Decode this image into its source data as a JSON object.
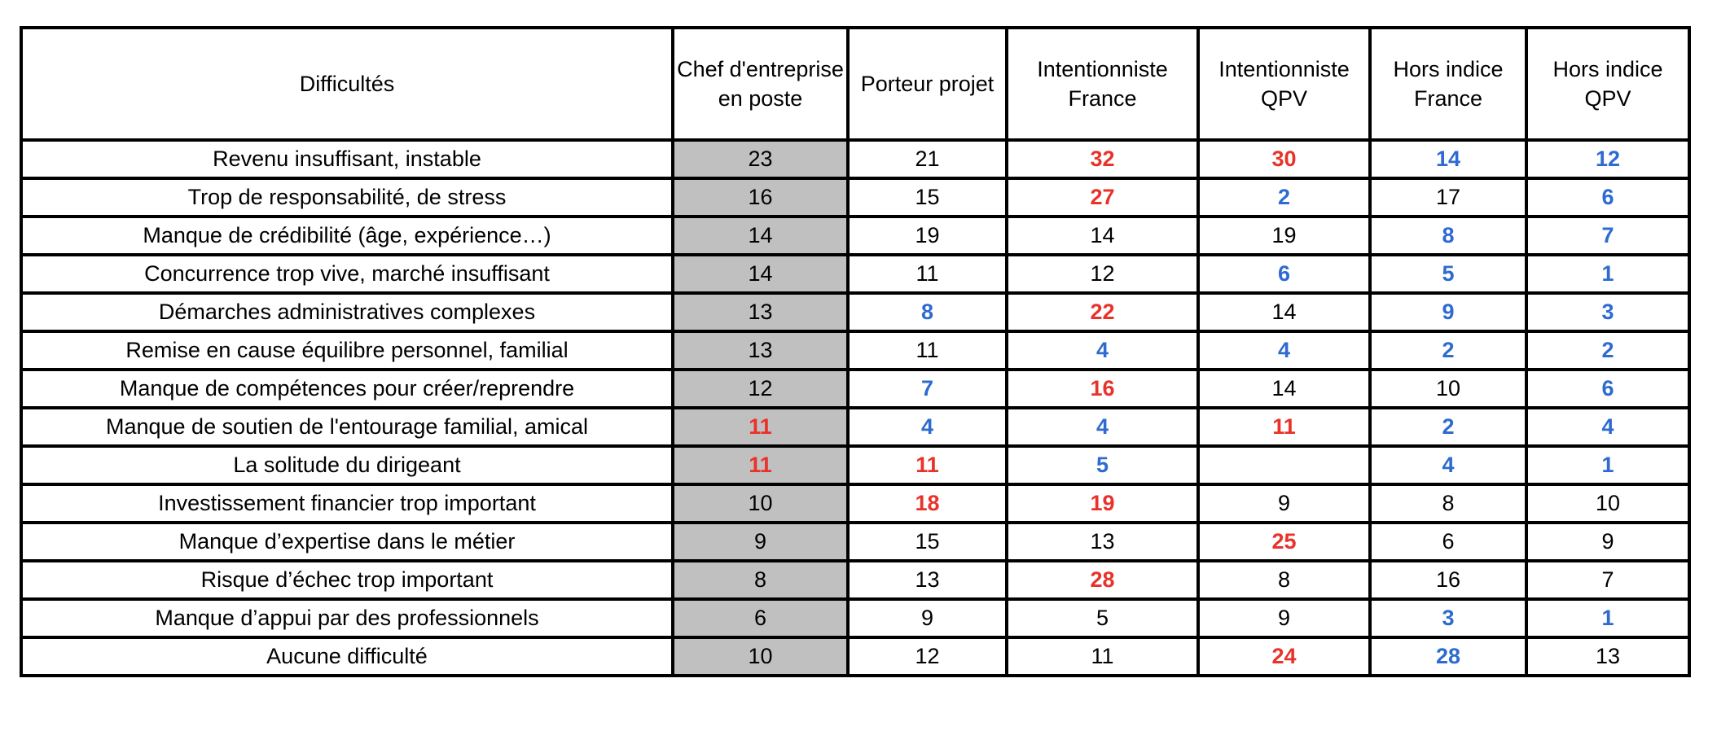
{
  "colors": {
    "highlight_high": "#e8322a",
    "highlight_low": "#2e6bd0",
    "reference_column": "#c0c0c0"
  },
  "table": {
    "headers": [
      "Difficultés",
      "Chef d'entreprise en poste",
      "Porteur projet",
      "Intentionniste France",
      "Intentionniste QPV",
      "Hors indice France",
      "Hors indice QPV"
    ],
    "rows": [
      {
        "label": "Revenu insuffisant, instable",
        "values": [
          "23",
          "21",
          "32",
          "30",
          "14",
          "12"
        ],
        "styles": [
          "",
          "",
          "red",
          "red",
          "blue",
          "blue"
        ]
      },
      {
        "label": "Trop de responsabilité, de stress",
        "values": [
          "16",
          "15",
          "27",
          "2",
          "17",
          "6"
        ],
        "styles": [
          "",
          "",
          "red",
          "blue",
          "",
          "blue"
        ]
      },
      {
        "label": "Manque de crédibilité (âge, expérience…)",
        "values": [
          "14",
          "19",
          "14",
          "19",
          "8",
          "7"
        ],
        "styles": [
          "",
          "",
          "",
          "",
          "blue",
          "blue"
        ]
      },
      {
        "label": "Concurrence trop vive, marché insuffisant",
        "values": [
          "14",
          "11",
          "12",
          "6",
          "5",
          "1"
        ],
        "styles": [
          "",
          "",
          "",
          "blue",
          "blue",
          "blue"
        ]
      },
      {
        "label": "Démarches administratives complexes",
        "values": [
          "13",
          "8",
          "22",
          "14",
          "9",
          "3"
        ],
        "styles": [
          "",
          "blue",
          "red",
          "",
          "blue",
          "blue"
        ]
      },
      {
        "label": "Remise en cause équilibre personnel, familial",
        "values": [
          "13",
          "11",
          "4",
          "4",
          "2",
          "2"
        ],
        "styles": [
          "",
          "",
          "blue",
          "blue",
          "blue",
          "blue"
        ]
      },
      {
        "label": "Manque de compétences pour créer/reprendre",
        "values": [
          "12",
          "7",
          "16",
          "14",
          "10",
          "6"
        ],
        "styles": [
          "",
          "blue",
          "red",
          "",
          "",
          "blue"
        ]
      },
      {
        "label": "Manque de soutien de l'entourage familial, amical",
        "values": [
          "11",
          "4",
          "4",
          "11",
          "2",
          "4"
        ],
        "styles": [
          "red",
          "blue",
          "blue",
          "red",
          "blue",
          "blue"
        ]
      },
      {
        "label": "La solitude du dirigeant",
        "values": [
          "11",
          "11",
          "5",
          "",
          "4",
          "1"
        ],
        "styles": [
          "red",
          "red",
          "blue",
          "",
          "blue",
          "blue"
        ]
      },
      {
        "label": "Investissement financier trop important",
        "values": [
          "10",
          "18",
          "19",
          "9",
          "8",
          "10"
        ],
        "styles": [
          "",
          "red",
          "red",
          "",
          "",
          ""
        ]
      },
      {
        "label": "Manque d’expertise dans le métier",
        "values": [
          "9",
          "15",
          "13",
          "25",
          "6",
          "9"
        ],
        "styles": [
          "",
          "",
          "",
          "red",
          "",
          ""
        ]
      },
      {
        "label": "Risque d’échec trop important",
        "values": [
          "8",
          "13",
          "28",
          "8",
          "16",
          "7"
        ],
        "styles": [
          "",
          "",
          "red",
          "",
          "",
          ""
        ]
      },
      {
        "label": "Manque d’appui par des professionnels",
        "values": [
          "6",
          "9",
          "5",
          "9",
          "3",
          "1"
        ],
        "styles": [
          "",
          "",
          "",
          "",
          "blue",
          "blue"
        ]
      },
      {
        "label": "Aucune difficulté",
        "values": [
          "10",
          "12",
          "11",
          "24",
          "28",
          "13"
        ],
        "styles": [
          "",
          "",
          "",
          "red",
          "blue",
          ""
        ]
      }
    ]
  }
}
